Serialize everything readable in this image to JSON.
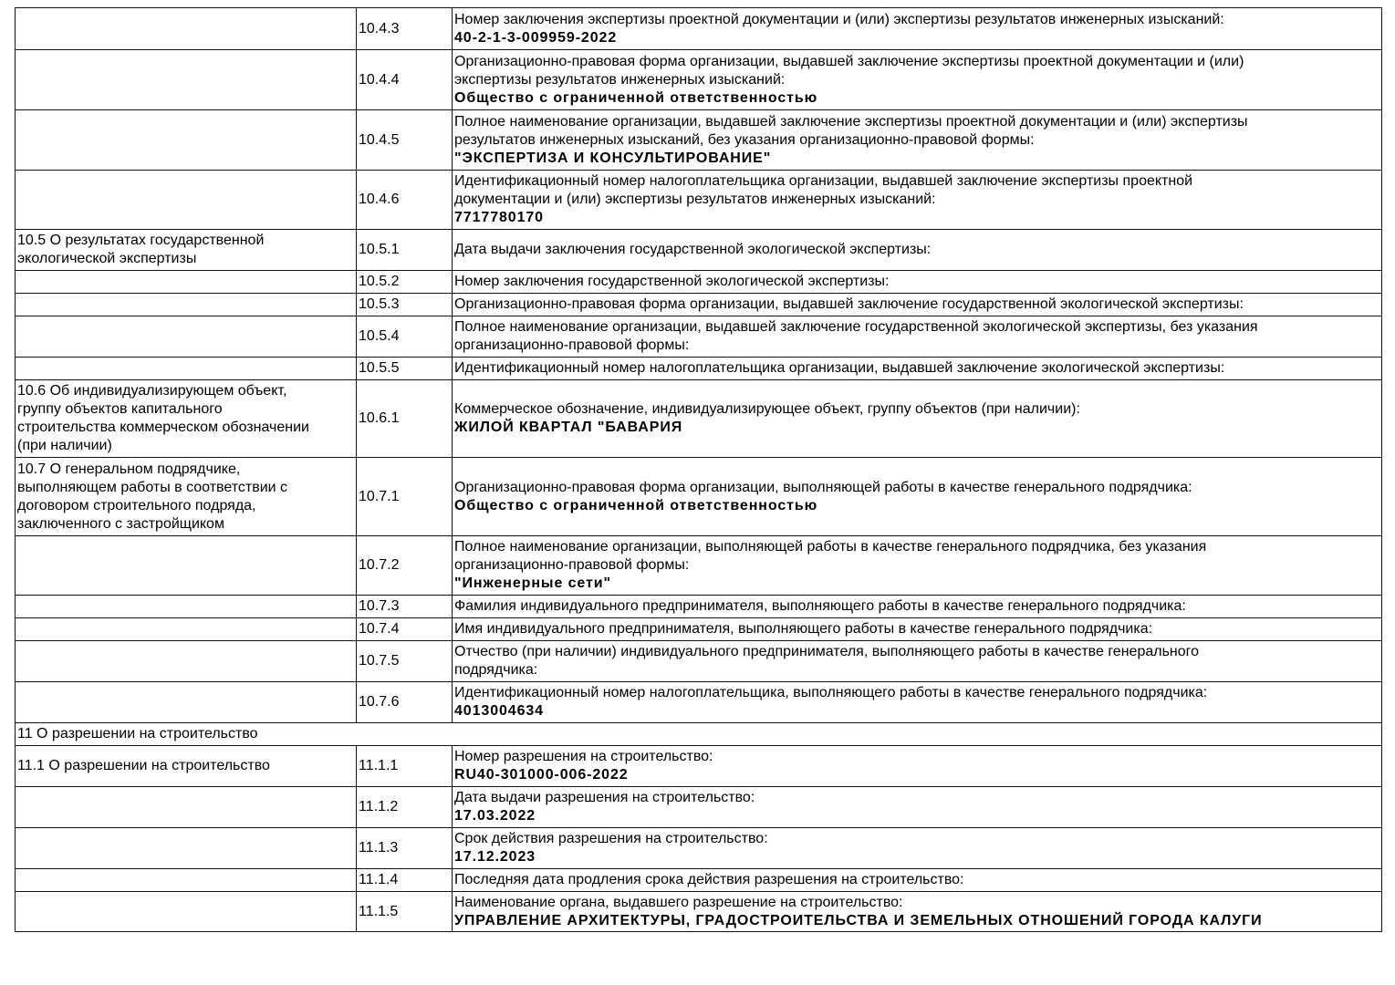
{
  "rows": [
    {
      "section": "",
      "code": "10.4.3",
      "label": "Номер заключения экспертизы проектной документации и (или) экспертизы результатов инженерных изысканий:",
      "value": "40-2-1-3-009959-2022"
    },
    {
      "section": "",
      "code": "10.4.4",
      "label": "Организационно-правовая форма организации, выдавшей заключение экспертизы проектной документации и (или)\nэкспертизы результатов инженерных изысканий:",
      "value": "Общество с ограниченной ответственностью"
    },
    {
      "section": "",
      "code": "10.4.5",
      "label": "Полное наименование организации, выдавшей заключение экспертизы проектной документации и (или) экспертизы\nрезультатов инженерных изысканий, без указания организационно-правовой формы:",
      "value": "\"ЭКСПЕРТИЗА И КОНСУЛЬТИРОВАНИЕ\""
    },
    {
      "section": "",
      "code": "10.4.6",
      "label": "Идентификационный номер налогоплательщика организации, выдавшей заключение экспертизы проектной\nдокументации и (или) экспертизы результатов инженерных изысканий:",
      "value": "7717780170"
    },
    {
      "section": "10.5 О результатах государственной\nэкологической экспертизы",
      "code": "10.5.1",
      "label": "Дата выдачи заключения государственной экологической экспертизы:",
      "value": ""
    },
    {
      "section": "",
      "code": "10.5.2",
      "label": "Номер заключения государственной экологической экспертизы:",
      "value": ""
    },
    {
      "section": "",
      "code": "10.5.3",
      "label": "Организационно-правовая форма организации, выдавшей заключение государственной экологической экспертизы:",
      "value": ""
    },
    {
      "section": "",
      "code": "10.5.4",
      "label": "Полное наименование организации, выдавшей заключение государственной экологической экспертизы, без указания\nорганизационно-правовой формы:",
      "value": ""
    },
    {
      "section": "",
      "code": "10.5.5",
      "label": "Идентификационный номер налогоплательщика организации, выдавшей заключение экологической экспертизы:",
      "value": ""
    },
    {
      "section": "10.6 Об индивидуализирующем объект,\nгруппу объектов капитального\nстроительства коммерческом обозначении\n(при наличии)",
      "code": "10.6.1",
      "label": "Коммерческое обозначение, индивидуализирующее объект, группу объектов (при наличии):",
      "value": "ЖИЛОЙ КВАРТАЛ \"БАВАРИЯ"
    },
    {
      "section": "10.7 О генеральном подрядчике,\nвыполняющем работы в соответствии с\nдоговором строительного подряда,\nзаключенного с застройщиком",
      "code": "10.7.1",
      "label": "Организационно-правовая форма организации, выполняющей работы в качестве генерального подрядчика:",
      "value": "Общество с ограниченной ответственностью"
    },
    {
      "section": "",
      "code": "10.7.2",
      "label": "Полное наименование организации, выполняющей работы в качестве генерального подрядчика, без указания\nорганизационно-правовой формы:",
      "value": "\"Инженерные сети\""
    },
    {
      "section": "",
      "code": "10.7.3",
      "label": "Фамилия индивидуального предпринимателя, выполняющего работы в качестве генерального подрядчика:",
      "value": ""
    },
    {
      "section": "",
      "code": "10.7.4",
      "label": "Имя индивидуального предпринимателя, выполняющего работы в качестве генерального подрядчика:",
      "value": ""
    },
    {
      "section": "",
      "code": "10.7.5",
      "label": "Отчество (при наличии) индивидуального предпринимателя, выполняющего работы в качестве генерального\nподрядчика:",
      "value": ""
    },
    {
      "section": "",
      "code": "10.7.6",
      "label": "Идентификационный номер налогоплательщика, выполняющего работы в качестве генерального подрядчика:",
      "value": "4013004634"
    },
    {
      "header": "11 О разрешении на строительство"
    },
    {
      "section": "11.1 О разрешении на строительство",
      "code": "11.1.1",
      "label": "Номер разрешения на строительство:",
      "value": "RU40-301000-006-2022"
    },
    {
      "section": "",
      "code": "11.1.2",
      "label": "Дата выдачи разрешения на строительство:",
      "value": "17.03.2022"
    },
    {
      "section": "",
      "code": "11.1.3",
      "label": "Срок действия разрешения на строительство:",
      "value": "17.12.2023"
    },
    {
      "section": "",
      "code": "11.1.4",
      "label": "Последняя дата продления срока действия разрешения на строительство:",
      "value": ""
    },
    {
      "section": "",
      "code": "11.1.5",
      "label": "Наименование органа, выдавшего разрешение на строительство:",
      "value": "УПРАВЛЕНИЕ АРХИТЕКТУРЫ, ГРАДОСТРОИТЕЛЬСТВА И ЗЕМЕЛЬНЫХ ОТНОШЕНИЙ ГОРОДА КАЛУГИ"
    }
  ]
}
